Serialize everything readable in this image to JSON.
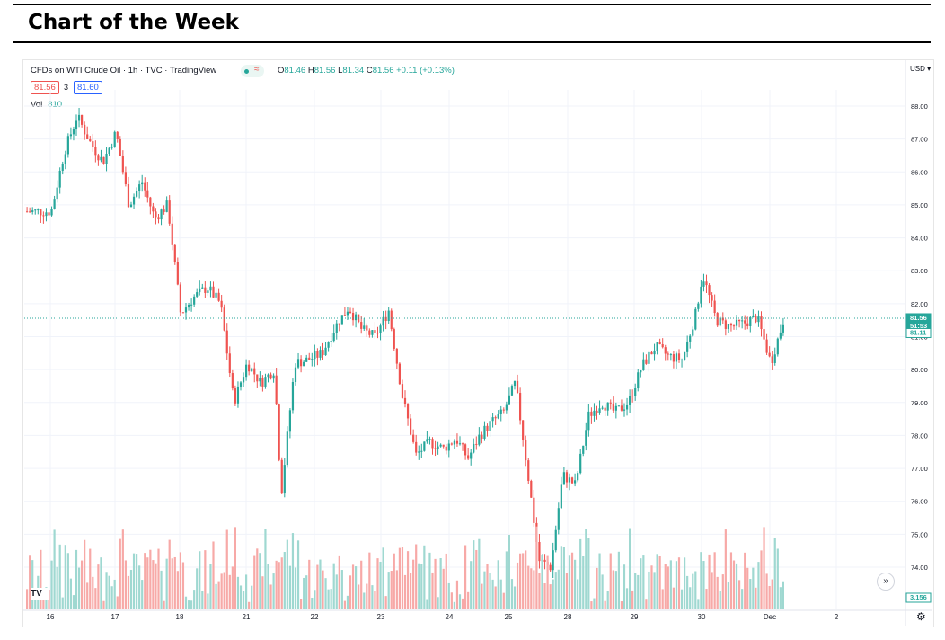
{
  "header": {
    "title": "Chart of the Week"
  },
  "toolbar": {
    "symbol_line": "CFDs on WTI Crude Oil · 1h · TVC · TradingView",
    "open_label": "O",
    "open": "81.46",
    "high_label": "H",
    "high": "81.56",
    "low_label": "L",
    "low": "81.34",
    "close_label": "C",
    "close": "81.56",
    "change": "+0.11 (+0.13%)",
    "sell_price": "81.56",
    "spread": "3",
    "buy_price": "81.60",
    "vol_label": "Vol",
    "vol_value": "810",
    "currency": "USD",
    "logo": "TV",
    "scroll_icon": "»",
    "gear_icon": "⚙"
  },
  "price_tags": {
    "last": "81.56",
    "countdown": "51:53",
    "prev": "81.11",
    "volume": "3.156"
  },
  "colors": {
    "up": "#26a69a",
    "down": "#ef5350",
    "up_vol": "#9fd8d1",
    "down_vol": "#f7a9a7",
    "grid": "#f0f3fa"
  },
  "chart_data": {
    "type": "candlestick",
    "title": "CFDs on WTI Crude Oil · 1h · TVC · TradingView",
    "ylim": [
      73.5,
      88.3
    ],
    "y_ticks": [
      74,
      75,
      76,
      77,
      78,
      79,
      80,
      81,
      82,
      83,
      84,
      85,
      86,
      87,
      88
    ],
    "y_tick_labels": [
      "74.00",
      "75.00",
      "76.00",
      "77.00",
      "78.00",
      "79.00",
      "80.00",
      "81.00",
      "82.00",
      "83.00",
      "84.00",
      "85.00",
      "86.00",
      "87.00",
      "88.00"
    ],
    "x_labels": [
      "16",
      "17",
      "18",
      "21",
      "22",
      "23",
      "24",
      "25",
      "28",
      "29",
      "30",
      "Dec",
      "2"
    ],
    "last_price": 81.56,
    "series": [
      {
        "day": "16",
        "x": 0,
        "value": 84.8
      },
      {
        "day": "16",
        "x": 0.2,
        "value": 86.6
      },
      {
        "day": "16",
        "x": 0.4,
        "value": 87.7
      },
      {
        "day": "16",
        "x": 0.6,
        "value": 86.9
      },
      {
        "day": "16",
        "x": 0.8,
        "value": 86.3
      },
      {
        "day": "16",
        "x": 1.0,
        "value": 87.2
      },
      {
        "day": "17",
        "x": 1.2,
        "value": 85.0
      },
      {
        "day": "17",
        "x": 1.4,
        "value": 85.7
      },
      {
        "day": "17",
        "x": 1.6,
        "value": 84.6
      },
      {
        "day": "17",
        "x": 1.8,
        "value": 85.0
      },
      {
        "day": "18",
        "x": 2.0,
        "value": 81.7
      },
      {
        "day": "18",
        "x": 2.2,
        "value": 82.2
      },
      {
        "day": "18",
        "x": 2.4,
        "value": 82.5
      },
      {
        "day": "18",
        "x": 2.6,
        "value": 82.0
      },
      {
        "day": "21",
        "x": 2.8,
        "value": 79.0
      },
      {
        "day": "21",
        "x": 3.0,
        "value": 80.2
      },
      {
        "day": "21",
        "x": 3.2,
        "value": 79.6
      },
      {
        "day": "21",
        "x": 3.4,
        "value": 80.0
      },
      {
        "day": "21",
        "x": 3.5,
        "value": 76.2
      },
      {
        "day": "22",
        "x": 3.7,
        "value": 80.2
      },
      {
        "day": "22",
        "x": 3.9,
        "value": 80.3
      },
      {
        "day": "22",
        "x": 4.1,
        "value": 80.5
      },
      {
        "day": "22",
        "x": 4.3,
        "value": 81.3
      },
      {
        "day": "22",
        "x": 4.5,
        "value": 81.9
      },
      {
        "day": "23",
        "x": 4.7,
        "value": 81.2
      },
      {
        "day": "23",
        "x": 4.9,
        "value": 81.0
      },
      {
        "day": "23",
        "x": 5.1,
        "value": 81.8
      },
      {
        "day": "23",
        "x": 5.3,
        "value": 79.2
      },
      {
        "day": "24",
        "x": 5.5,
        "value": 77.4
      },
      {
        "day": "24",
        "x": 5.7,
        "value": 77.8
      },
      {
        "day": "24",
        "x": 5.9,
        "value": 77.6
      },
      {
        "day": "25",
        "x": 6.1,
        "value": 77.9
      },
      {
        "day": "25",
        "x": 6.3,
        "value": 77.3
      },
      {
        "day": "25",
        "x": 6.5,
        "value": 78.0
      },
      {
        "day": "25",
        "x": 6.7,
        "value": 78.4
      },
      {
        "day": "25",
        "x": 6.9,
        "value": 78.7
      },
      {
        "day": "28",
        "x": 7.1,
        "value": 79.6
      },
      {
        "day": "28",
        "x": 7.3,
        "value": 77.0
      },
      {
        "day": "28",
        "x": 7.5,
        "value": 74.2
      },
      {
        "day": "28",
        "x": 7.7,
        "value": 74.0
      },
      {
        "day": "29",
        "x": 7.9,
        "value": 76.8
      },
      {
        "day": "29",
        "x": 8.1,
        "value": 76.5
      },
      {
        "day": "29",
        "x": 8.3,
        "value": 78.6
      },
      {
        "day": "29",
        "x": 8.5,
        "value": 79.0
      },
      {
        "day": "30",
        "x": 8.7,
        "value": 78.7
      },
      {
        "day": "30",
        "x": 8.9,
        "value": 79.0
      },
      {
        "day": "30",
        "x": 9.1,
        "value": 80.1
      },
      {
        "day": "30",
        "x": 9.3,
        "value": 80.7
      },
      {
        "day": "Dec",
        "x": 9.5,
        "value": 80.4
      },
      {
        "day": "Dec",
        "x": 9.7,
        "value": 80.3
      },
      {
        "day": "Dec",
        "x": 9.9,
        "value": 81.7
      },
      {
        "day": "Dec",
        "x": 10.0,
        "value": 82.9
      },
      {
        "day": "2",
        "x": 10.2,
        "value": 81.5
      },
      {
        "day": "2",
        "x": 10.4,
        "value": 81.3
      },
      {
        "day": "2",
        "x": 10.6,
        "value": 81.4
      },
      {
        "day": "2",
        "x": 10.8,
        "value": 81.6
      },
      {
        "day": "2",
        "x": 11.0,
        "value": 80.2
      },
      {
        "day": "2",
        "x": 11.2,
        "value": 81.56
      }
    ]
  }
}
